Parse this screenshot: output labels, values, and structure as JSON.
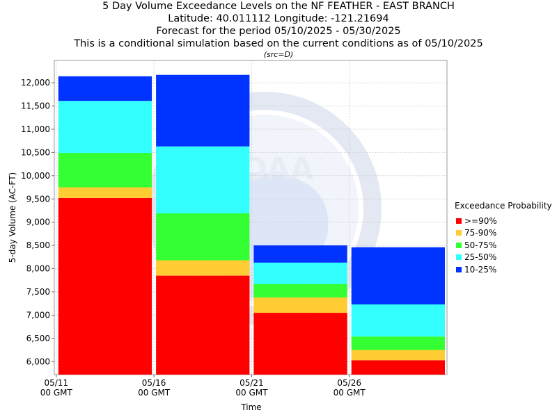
{
  "titles": {
    "line1": "5 Day Volume Exceedance Levels on the NF FEATHER - EAST BRANCH",
    "line2": "Latitude: 40.011112 Longitude: -121.21694",
    "line3": "Forecast for the period 05/10/2025 - 05/30/2025",
    "line4": "This is a conditional simulation based on the current conditions as of 05/10/2025",
    "src": "(src=D)"
  },
  "watermark": "NOAA",
  "chart_data": {
    "type": "bar",
    "stacked": true,
    "title": "5 Day Volume Exceedance Levels on the NF FEATHER - EAST BRANCH",
    "xlabel": "Time",
    "ylabel": "5-day Volume (AC-FT)",
    "ylim": [
      5720,
      12480
    ],
    "yticks": [
      6000,
      6500,
      7000,
      7500,
      8000,
      8500,
      9000,
      9500,
      10000,
      10500,
      11000,
      11500,
      12000
    ],
    "ytick_labels": [
      "6,000",
      "6,500",
      "7,000",
      "7,500",
      "8,000",
      "8,500",
      "9,000",
      "9,500",
      "10,000",
      "10,500",
      "11,000",
      "11,500",
      "12,000"
    ],
    "xticks": [
      {
        "label": "05/11",
        "sub": "00 GMT",
        "day": 11
      },
      {
        "label": "05/16",
        "sub": "00 GMT",
        "day": 16
      },
      {
        "label": "05/21",
        "sub": "00 GMT",
        "day": 21
      },
      {
        "label": "05/26",
        "sub": "00 GMT",
        "day": 26
      }
    ],
    "xlim_days": [
      10.9,
      31.0
    ],
    "grid": true,
    "legend_title": "Exceedance Probability",
    "legend_position": "right",
    "series": [
      {
        "name": ">=90%",
        "color": "#ff0000"
      },
      {
        "name": "75-90%",
        "color": "#ffcc33"
      },
      {
        "name": "50-75%",
        "color": "#33ff33"
      },
      {
        "name": "25-50%",
        "color": "#33ffff"
      },
      {
        "name": "10-25%",
        "color": "#0033ff"
      }
    ],
    "bars": [
      {
        "start_day": 11,
        "end_day": 16,
        "levels": [
          9520,
          9750,
          10490,
          11610,
          12140
        ]
      },
      {
        "start_day": 16,
        "end_day": 21,
        "levels": [
          7850,
          8180,
          9190,
          10630,
          12170
        ]
      },
      {
        "start_day": 21,
        "end_day": 26,
        "levels": [
          7050,
          7380,
          7670,
          8130,
          8500
        ]
      },
      {
        "start_day": 26,
        "end_day": 31,
        "levels": [
          6030,
          6250,
          6540,
          7230,
          8460
        ]
      }
    ]
  }
}
